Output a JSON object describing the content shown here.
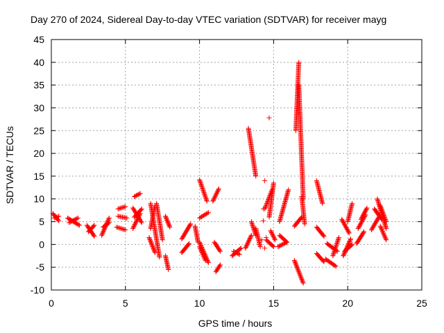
{
  "chart_data": {
    "type": "scatter",
    "title": "Day 270 of 2024, Sidereal Day-to-day VTEC variation (SDTVAR) for receiver mayg",
    "xlabel": "GPS time / hours",
    "ylabel": "SDTVAR / TECUs",
    "xlim": [
      0,
      25
    ],
    "ylim": [
      -10,
      45
    ],
    "xticks": [
      0,
      5,
      10,
      15,
      20,
      25
    ],
    "yticks": [
      -10,
      -5,
      0,
      5,
      10,
      15,
      20,
      25,
      30,
      35,
      40,
      45
    ],
    "grid": true,
    "marker": "+",
    "marker_color": "#ff0000",
    "segments": [
      {
        "x0": 0.1,
        "y0": 6.8,
        "x1": 0.5,
        "y1": 5.2
      },
      {
        "x0": 0.2,
        "y0": 5.8,
        "x1": 0.5,
        "y1": 6.2
      },
      {
        "x0": 1.1,
        "y0": 5.8,
        "x1": 1.9,
        "y1": 4.2
      },
      {
        "x0": 1.2,
        "y0": 4.8,
        "x1": 1.8,
        "y1": 5.8
      },
      {
        "x0": 2.4,
        "y0": 4.2,
        "x1": 2.9,
        "y1": 1.8
      },
      {
        "x0": 2.5,
        "y0": 2.8,
        "x1": 2.9,
        "y1": 4.2
      },
      {
        "x0": 3.4,
        "y0": 2.0,
        "x1": 3.9,
        "y1": 5.8
      },
      {
        "x0": 3.5,
        "y0": 3.8,
        "x1": 3.9,
        "y1": 4.8
      },
      {
        "x0": 4.4,
        "y0": 3.8,
        "x1": 5.0,
        "y1": 3.2
      },
      {
        "x0": 4.5,
        "y0": 7.8,
        "x1": 5.0,
        "y1": 8.3
      },
      {
        "x0": 4.5,
        "y0": 6.2,
        "x1": 5.1,
        "y1": 5.8
      },
      {
        "x0": 5.5,
        "y0": 8.0,
        "x1": 6.1,
        "y1": 4.8
      },
      {
        "x0": 5.5,
        "y0": 3.5,
        "x1": 6.0,
        "y1": 6.8
      },
      {
        "x0": 5.6,
        "y0": 10.5,
        "x1": 6.0,
        "y1": 11.2
      },
      {
        "x0": 5.6,
        "y0": 6.0,
        "x1": 6.1,
        "y1": 7.8
      },
      {
        "x0": 6.7,
        "y0": 9.0,
        "x1": 7.3,
        "y1": -2.8
      },
      {
        "x0": 6.6,
        "y0": 1.5,
        "x1": 7.0,
        "y1": -1.8
      },
      {
        "x0": 6.7,
        "y0": 3.5,
        "x1": 7.0,
        "y1": 8.5
      },
      {
        "x0": 7.1,
        "y0": 9.0,
        "x1": 7.5,
        "y1": 1.0
      },
      {
        "x0": 7.7,
        "y0": -2.5,
        "x1": 7.9,
        "y1": -5.5
      },
      {
        "x0": 7.7,
        "y0": 6.2,
        "x1": 8.0,
        "y1": 3.8
      },
      {
        "x0": 8.8,
        "y0": -1.8,
        "x1": 9.3,
        "y1": 0.2
      },
      {
        "x0": 8.8,
        "y0": 1.2,
        "x1": 9.4,
        "y1": 4.5
      },
      {
        "x0": 9.7,
        "y0": 4.0,
        "x1": 9.9,
        "y1": 0.5
      },
      {
        "x0": 10.0,
        "y0": 14.2,
        "x1": 10.5,
        "y1": 9.5
      },
      {
        "x0": 10.0,
        "y0": 5.8,
        "x1": 10.6,
        "y1": 7.0
      },
      {
        "x0": 10.0,
        "y0": 0.5,
        "x1": 10.6,
        "y1": -4.0
      },
      {
        "x0": 10.0,
        "y0": -0.5,
        "x1": 10.4,
        "y1": -3.5
      },
      {
        "x0": 10.9,
        "y0": 9.5,
        "x1": 11.3,
        "y1": 12.2
      },
      {
        "x0": 11.0,
        "y0": 0.5,
        "x1": 11.4,
        "y1": -1.5
      },
      {
        "x0": 11.1,
        "y0": -6.0,
        "x1": 11.4,
        "y1": -4.5
      },
      {
        "x0": 12.2,
        "y0": -2.5,
        "x1": 12.8,
        "y1": -0.8
      },
      {
        "x0": 12.3,
        "y0": -1.5,
        "x1": 12.7,
        "y1": -2.2
      },
      {
        "x0": 13.1,
        "y0": -0.8,
        "x1": 13.5,
        "y1": 2.0
      },
      {
        "x0": 13.3,
        "y0": 25.5,
        "x1": 13.8,
        "y1": 15.0
      },
      {
        "x0": 13.5,
        "y0": 5.0,
        "x1": 13.8,
        "y1": 2.0
      },
      {
        "x0": 13.8,
        "y0": 3.5,
        "x1": 14.1,
        "y1": -0.5
      },
      {
        "x0": 14.4,
        "y0": 7.8,
        "x1": 14.9,
        "y1": 12.0
      },
      {
        "x0": 14.5,
        "y0": 1.0,
        "x1": 15.0,
        "y1": -0.5
      },
      {
        "x0": 14.7,
        "y0": 6.0,
        "x1": 15.0,
        "y1": 13.5
      },
      {
        "x0": 14.8,
        "y0": 3.0,
        "x1": 15.1,
        "y1": 1.0
      },
      {
        "x0": 15.3,
        "y0": -0.5,
        "x1": 15.9,
        "y1": 0.5
      },
      {
        "x0": 15.4,
        "y0": 2.0,
        "x1": 15.9,
        "y1": 0.5
      },
      {
        "x0": 15.4,
        "y0": 5.0,
        "x1": 16.0,
        "y1": 12.0
      },
      {
        "x0": 16.4,
        "y0": 4.0,
        "x1": 16.9,
        "y1": 6.0
      },
      {
        "x0": 16.5,
        "y0": 25.0,
        "x1": 16.7,
        "y1": 40.0
      },
      {
        "x0": 16.7,
        "y0": 35.0,
        "x1": 17.0,
        "y1": 10.0
      },
      {
        "x0": 16.4,
        "y0": -3.5,
        "x1": 17.0,
        "y1": -8.5
      },
      {
        "x0": 16.9,
        "y0": 10.5,
        "x1": 17.1,
        "y1": 4.5
      },
      {
        "x0": 17.9,
        "y0": 14.0,
        "x1": 18.3,
        "y1": 9.0
      },
      {
        "x0": 17.9,
        "y0": 3.8,
        "x1": 18.4,
        "y1": 1.8
      },
      {
        "x0": 17.9,
        "y0": -2.0,
        "x1": 18.4,
        "y1": -3.8
      },
      {
        "x0": 18.5,
        "y0": -3.2,
        "x1": 19.2,
        "y1": -4.8
      },
      {
        "x0": 18.6,
        "y0": 0.2,
        "x1": 19.3,
        "y1": -1.5
      },
      {
        "x0": 19.0,
        "y0": -2.5,
        "x1": 19.4,
        "y1": 1.5
      },
      {
        "x0": 19.6,
        "y0": 5.5,
        "x1": 20.1,
        "y1": 2.5
      },
      {
        "x0": 19.7,
        "y0": -2.5,
        "x1": 20.2,
        "y1": 1.2
      },
      {
        "x0": 19.8,
        "y0": -1.5,
        "x1": 20.3,
        "y1": 0.0
      },
      {
        "x0": 20.0,
        "y0": 5.0,
        "x1": 20.3,
        "y1": 9.0
      },
      {
        "x0": 20.6,
        "y0": 0.2,
        "x1": 21.1,
        "y1": 2.8
      },
      {
        "x0": 20.7,
        "y0": 3.5,
        "x1": 21.2,
        "y1": 6.5
      },
      {
        "x0": 20.9,
        "y0": 5.5,
        "x1": 21.3,
        "y1": 8.0
      },
      {
        "x0": 21.6,
        "y0": 3.2,
        "x1": 22.1,
        "y1": 6.0
      },
      {
        "x0": 21.8,
        "y0": 7.8,
        "x1": 22.3,
        "y1": 5.5
      },
      {
        "x0": 22.0,
        "y0": 10.0,
        "x1": 22.6,
        "y1": 3.5
      },
      {
        "x0": 22.2,
        "y0": 8.5,
        "x1": 22.6,
        "y1": 5.0
      },
      {
        "x0": 22.2,
        "y0": 4.0,
        "x1": 22.6,
        "y1": 1.0
      }
    ],
    "isolated_points": [
      {
        "x": 14.2,
        "y": 1.0
      },
      {
        "x": 14.3,
        "y": 5.2
      },
      {
        "x": 14.3,
        "y": 7.8
      },
      {
        "x": 14.4,
        "y": 14.0
      },
      {
        "x": 14.7,
        "y": 27.8
      },
      {
        "x": 14.4,
        "y": -0.8
      },
      {
        "x": 14.5,
        "y": 1.5
      }
    ]
  }
}
